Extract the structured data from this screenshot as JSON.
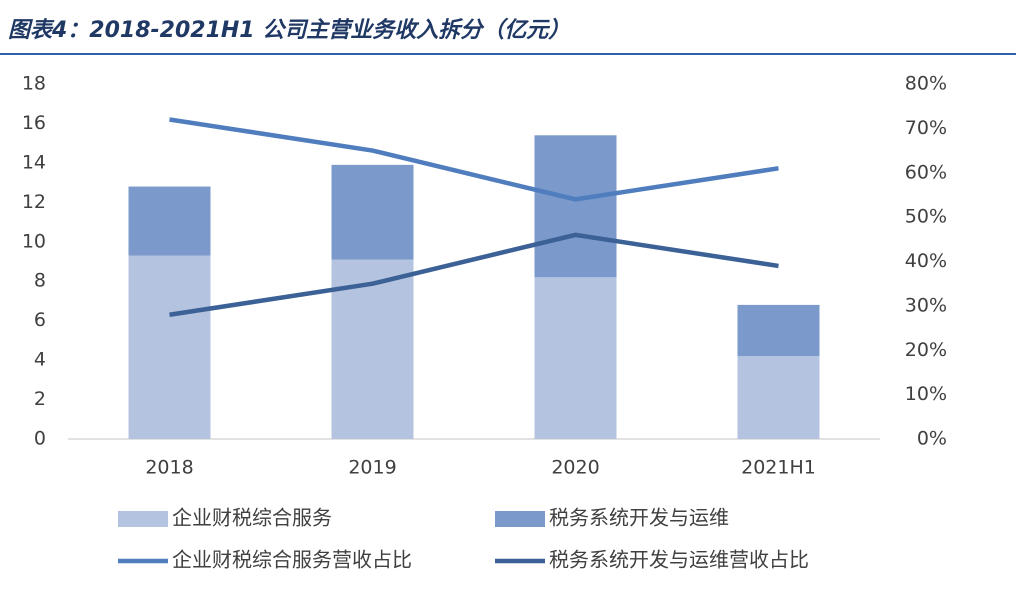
{
  "chart_data": {
    "type": "bar",
    "title": "图表4：2018-2021H1 公司主营业务收入拆分（亿元）",
    "stacked": true,
    "categories": [
      "2018",
      "2019",
      "2020",
      "2021H1"
    ],
    "series": [
      {
        "name": "企业财税综合服务",
        "type": "bar",
        "color": "#b4c3df",
        "values": [
          9.3,
          9.1,
          8.2,
          4.2
        ]
      },
      {
        "name": "税务系统开发与运维",
        "type": "bar",
        "color": "#7b9acb",
        "values": [
          3.5,
          4.8,
          7.2,
          2.6
        ]
      },
      {
        "name": "企业财税综合服务营收占比",
        "type": "line",
        "axis": "y2",
        "color": "#4f7dbd",
        "values": [
          72,
          65,
          54,
          61
        ]
      },
      {
        "name": "税务系统开发与运维营收占比",
        "type": "line",
        "axis": "y2",
        "color": "#3b6196",
        "values": [
          28,
          35,
          46,
          39
        ]
      }
    ],
    "ylim": [
      0,
      18
    ],
    "yticks": [
      0,
      2,
      4,
      6,
      8,
      10,
      12,
      14,
      16,
      18
    ],
    "y2lim": [
      0,
      80
    ],
    "y2ticks": [
      {
        "value": 0,
        "label": "0%"
      },
      {
        "value": 10,
        "label": "10%"
      },
      {
        "value": 20,
        "label": "20%"
      },
      {
        "value": 30,
        "label": "30%"
      },
      {
        "value": 40,
        "label": "40%"
      },
      {
        "value": 50,
        "label": "50%"
      },
      {
        "value": 60,
        "label": "60%"
      },
      {
        "value": 70,
        "label": "70%"
      },
      {
        "value": 80,
        "label": "80%"
      }
    ],
    "grid": false
  }
}
